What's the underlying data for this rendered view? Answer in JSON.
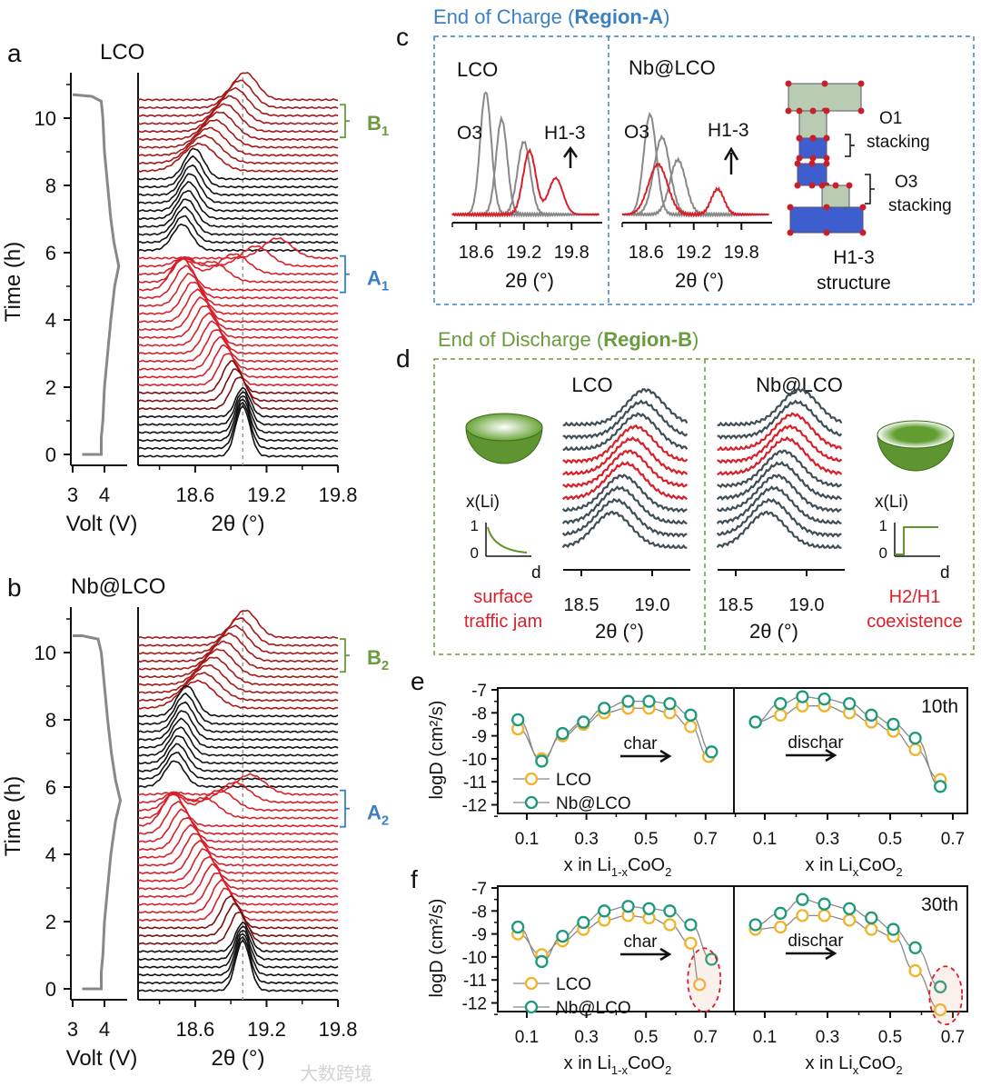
{
  "panel_a": {
    "label": "a",
    "sample": "LCO",
    "time_label": "Time (h)",
    "time_ticks": [
      "0",
      "2",
      "4",
      "6",
      "8",
      "10"
    ],
    "volt_ticks": [
      "3",
      "4"
    ],
    "volt_label": "Volt (V)",
    "theta_label": "2θ (°)",
    "theta_ticks": [
      "18.6",
      "19.2",
      "19.8"
    ],
    "bracket_b": "B",
    "bracket_b_sub": "1",
    "bracket_a": "A",
    "bracket_a_sub": "1"
  },
  "panel_b": {
    "label": "b",
    "sample": "Nb@LCO",
    "time_label": "Time (h)",
    "time_ticks": [
      "0",
      "2",
      "4",
      "6",
      "8",
      "10"
    ],
    "volt_ticks": [
      "3",
      "4"
    ],
    "volt_label": "Volt (V)",
    "theta_label": "2θ (°)",
    "theta_ticks": [
      "18.6",
      "19.2",
      "19.8"
    ],
    "bracket_b": "B",
    "bracket_b_sub": "2",
    "bracket_a": "A",
    "bracket_a_sub": "2"
  },
  "panel_c": {
    "label": "c",
    "title_pre": "End of Charge (",
    "title_bold": "Region-A",
    "title_post": ")",
    "left_sample": "LCO",
    "right_sample": "Nb@LCO",
    "o3": "O3",
    "h13": "H1-3",
    "ticks": [
      "18.6",
      "19.2",
      "19.8"
    ],
    "theta_label": "2θ (°)",
    "o1_stacking": [
      "O1",
      "stacking"
    ],
    "o3_stacking": [
      "O3",
      "stacking"
    ],
    "h13_structure": [
      "H1-3",
      "structure"
    ]
  },
  "panel_d": {
    "label": "d",
    "title_pre": "End of Discharge (",
    "title_bold": "Region-B",
    "title_post": ")",
    "left_sample": "LCO",
    "right_sample": "Nb@LCO",
    "ticks": [
      "18.5",
      "19.0"
    ],
    "theta_label": "2θ (°)",
    "xli": "x(Li)",
    "one": "1",
    "zero": "0",
    "d_axis": "d",
    "left_caption": [
      "surface",
      "traffic jam"
    ],
    "right_caption": [
      "H2/H1",
      "coexistence"
    ]
  },
  "colors": {
    "region_a": "#3b80c3",
    "region_b": "#6a9b3c",
    "red": "#d9202a",
    "lco": "#f0b429",
    "nb": "#1a9a7a"
  },
  "watermark": "大数跨境",
  "chart_data": [
    {
      "type": "line",
      "panel": "e",
      "cycle": "10th",
      "ylabel": "logD (cm²/s)",
      "ylim": [
        -12.5,
        -7
      ],
      "yticks": [
        "-7",
        "-8",
        "-9",
        "-10",
        "-11",
        "-12"
      ],
      "xticks": [
        "0.1",
        "0.3",
        "0.5",
        "0.7"
      ],
      "charge": {
        "xlabel": "x in Li1-xCoO2",
        "arrow": "char",
        "series": [
          {
            "name": "LCO",
            "x": [
              0.07,
              0.15,
              0.22,
              0.29,
              0.36,
              0.44,
              0.51,
              0.58,
              0.65,
              0.71
            ],
            "y": [
              -8.7,
              -10.0,
              -9.0,
              -8.5,
              -8.0,
              -7.8,
              -7.8,
              -8.0,
              -8.6,
              -9.9
            ]
          },
          {
            "name": "Nb@LCO",
            "x": [
              0.07,
              0.15,
              0.22,
              0.29,
              0.36,
              0.44,
              0.51,
              0.58,
              0.65,
              0.72
            ],
            "y": [
              -8.3,
              -10.1,
              -8.9,
              -8.4,
              -7.8,
              -7.5,
              -7.5,
              -7.6,
              -8.1,
              -9.7
            ]
          }
        ]
      },
      "discharge": {
        "xlabel": "x in LixCoO2",
        "arrow": "dischar",
        "series": [
          {
            "name": "LCO",
            "x": [
              0.07,
              0.15,
              0.22,
              0.29,
              0.37,
              0.44,
              0.51,
              0.58,
              0.66
            ],
            "y": [
              -8.4,
              -8.1,
              -7.7,
              -7.7,
              -8.0,
              -8.4,
              -8.8,
              -9.6,
              -10.9
            ]
          },
          {
            "name": "Nb@LCO",
            "x": [
              0.07,
              0.15,
              0.22,
              0.29,
              0.37,
              0.44,
              0.51,
              0.58,
              0.66
            ],
            "y": [
              -8.4,
              -7.6,
              -7.3,
              -7.4,
              -7.6,
              -8.1,
              -8.5,
              -9.1,
              -11.2
            ]
          }
        ]
      },
      "legend": [
        "LCO",
        "Nb@LCO"
      ]
    },
    {
      "type": "line",
      "panel": "f",
      "cycle": "30th",
      "ylabel": "logD (cm²/s)",
      "ylim": [
        -12.5,
        -7
      ],
      "yticks": [
        "-7",
        "-8",
        "-9",
        "-10",
        "-11",
        "-12"
      ],
      "xticks": [
        "0.1",
        "0.3",
        "0.5",
        "0.7"
      ],
      "charge": {
        "xlabel": "x in Li1-xCoO2",
        "arrow": "char",
        "series": [
          {
            "name": "LCO",
            "x": [
              0.07,
              0.15,
              0.22,
              0.29,
              0.36,
              0.44,
              0.51,
              0.58,
              0.65,
              0.68
            ],
            "y": [
              -9.0,
              -9.9,
              -9.3,
              -8.8,
              -8.4,
              -8.2,
              -8.3,
              -8.6,
              -9.4,
              -11.2
            ]
          },
          {
            "name": "Nb@LCO",
            "x": [
              0.07,
              0.15,
              0.22,
              0.29,
              0.36,
              0.44,
              0.51,
              0.58,
              0.65,
              0.72
            ],
            "y": [
              -8.7,
              -10.2,
              -9.1,
              -8.5,
              -8.0,
              -7.8,
              -7.9,
              -8.0,
              -8.6,
              -10.1
            ]
          }
        ]
      },
      "discharge": {
        "xlabel": "x in LixCoO2",
        "arrow": "dischar",
        "series": [
          {
            "name": "LCO",
            "x": [
              0.07,
              0.15,
              0.22,
              0.29,
              0.37,
              0.44,
              0.51,
              0.58,
              0.66
            ],
            "y": [
              -8.8,
              -8.7,
              -8.2,
              -8.2,
              -8.4,
              -8.8,
              -9.1,
              -10.6,
              -12.3
            ]
          },
          {
            "name": "Nb@LCO",
            "x": [
              0.07,
              0.15,
              0.22,
              0.29,
              0.37,
              0.44,
              0.51,
              0.58,
              0.66
            ],
            "y": [
              -8.6,
              -8.1,
              -7.5,
              -7.7,
              -7.9,
              -8.3,
              -8.8,
              -9.6,
              -11.3
            ]
          }
        ]
      },
      "legend": [
        "LCO",
        "Nb@LCO"
      ]
    }
  ]
}
